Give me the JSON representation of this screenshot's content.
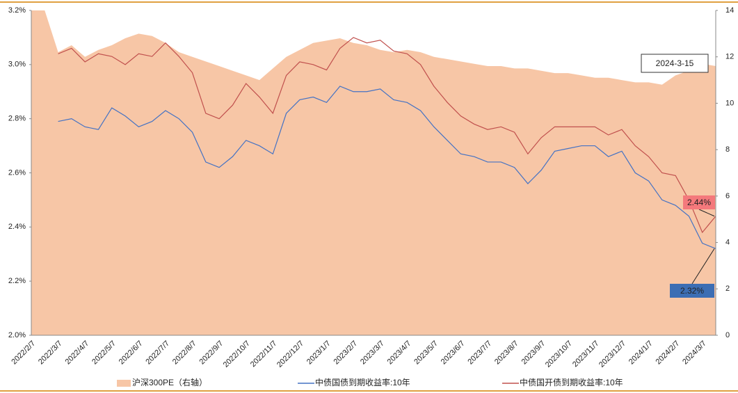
{
  "chart_data": {
    "type": "line",
    "annotation": "2024-3-15",
    "categories": [
      "2022/2/7",
      null,
      "2022/3/7",
      null,
      "2022/4/7",
      null,
      "2022/5/7",
      null,
      "2022/6/7",
      null,
      "2022/7/7",
      null,
      "2022/8/7",
      null,
      "2022/9/7",
      null,
      "2022/10/7",
      null,
      "2022/11/7",
      null,
      "2022/12/7",
      null,
      "2023/1/7",
      null,
      "2023/2/7",
      null,
      "2023/3/7",
      null,
      "2023/4/7",
      null,
      "2023/5/7",
      null,
      "2023/6/7",
      null,
      "2023/7/7",
      null,
      "2023/8/7",
      null,
      "2023/9/7",
      null,
      "2023/10/7",
      null,
      "2023/11/7",
      null,
      "2023/12/7",
      null,
      "2024/1/7",
      null,
      "2024/2/7",
      null,
      "2024/3/7",
      null
    ],
    "series": [
      {
        "name": "沪深300PE（右轴）",
        "color": "#f7c6a6",
        "axis": "y2",
        "kind": "area",
        "values": [
          14,
          14,
          12.2,
          12.5,
          12.0,
          12.3,
          12.5,
          12.8,
          13.0,
          12.9,
          12.6,
          12.2,
          12.0,
          11.8,
          11.6,
          11.4,
          11.2,
          11.0,
          11.5,
          12.0,
          12.3,
          12.6,
          12.7,
          12.8,
          12.6,
          12.5,
          12.3,
          12.2,
          12.3,
          12.2,
          12.0,
          11.9,
          11.8,
          11.7,
          11.6,
          11.6,
          11.5,
          11.5,
          11.4,
          11.3,
          11.3,
          11.2,
          11.1,
          11.1,
          11.0,
          10.9,
          10.9,
          10.8,
          11.2,
          11.4,
          11.7,
          11.6
        ]
      },
      {
        "name": "中债国债到期收益率:10年",
        "color": "#4472c4",
        "values": [
          null,
          null,
          2.79,
          2.8,
          2.77,
          2.76,
          2.84,
          2.81,
          2.77,
          2.79,
          2.83,
          2.8,
          2.75,
          2.64,
          2.62,
          2.66,
          2.72,
          2.7,
          2.67,
          2.82,
          2.87,
          2.88,
          2.86,
          2.92,
          2.9,
          2.9,
          2.91,
          2.87,
          2.86,
          2.83,
          2.77,
          2.72,
          2.67,
          2.66,
          2.64,
          2.64,
          2.62,
          2.56,
          2.61,
          2.68,
          2.69,
          2.7,
          2.7,
          2.66,
          2.68,
          2.6,
          2.57,
          2.5,
          2.48,
          2.44,
          2.34,
          2.32
        ],
        "value_labels": [
          null,
          null,
          null,
          null,
          null,
          null,
          null,
          null,
          null,
          null,
          null,
          null,
          null,
          null,
          null,
          null,
          null,
          null,
          null,
          null,
          null,
          null,
          null,
          null,
          null,
          null,
          null,
          null,
          null,
          null,
          null,
          null,
          null,
          null,
          null,
          null,
          null,
          null,
          null,
          null,
          null,
          null,
          null,
          null,
          null,
          null,
          null,
          null,
          null,
          null,
          null,
          "2.32%"
        ],
        "label_color": "#3c6eb4"
      },
      {
        "name": "中债国开债到期收益率:10年",
        "color": "#c0504d",
        "values": [
          null,
          null,
          3.04,
          3.06,
          3.01,
          3.04,
          3.03,
          3.0,
          3.04,
          3.03,
          3.08,
          3.03,
          2.97,
          2.82,
          2.8,
          2.85,
          2.93,
          2.88,
          2.82,
          2.96,
          3.01,
          3.0,
          2.98,
          3.06,
          3.1,
          3.08,
          3.09,
          3.05,
          3.04,
          3.0,
          2.92,
          2.86,
          2.81,
          2.78,
          2.76,
          2.77,
          2.75,
          2.67,
          2.73,
          2.77,
          2.77,
          2.77,
          2.77,
          2.74,
          2.76,
          2.7,
          2.66,
          2.6,
          2.59,
          2.5,
          2.38,
          2.44
        ],
        "value_labels": [
          null,
          null,
          null,
          null,
          null,
          null,
          null,
          null,
          null,
          null,
          null,
          null,
          null,
          null,
          null,
          null,
          null,
          null,
          null,
          null,
          null,
          null,
          null,
          null,
          null,
          null,
          null,
          null,
          null,
          null,
          null,
          null,
          null,
          null,
          null,
          null,
          null,
          null,
          null,
          null,
          null,
          null,
          null,
          null,
          null,
          null,
          null,
          null,
          null,
          null,
          null,
          "2.44%"
        ],
        "label_color": "#f4797c"
      }
    ],
    "ylim": [
      2.0,
      3.2
    ],
    "yticks": [
      {
        "value": 2.0,
        "label": "2.0%"
      },
      {
        "value": 2.2,
        "label": "2.2%"
      },
      {
        "value": 2.4,
        "label": "2.4%"
      },
      {
        "value": 2.6,
        "label": "2.6%"
      },
      {
        "value": 2.8,
        "label": "2.8%"
      },
      {
        "value": 3.0,
        "label": "3.0%"
      },
      {
        "value": 3.2,
        "label": "3.2%"
      }
    ],
    "y2lim": [
      0,
      14
    ],
    "y2ticks": [
      0,
      2,
      4,
      6,
      8,
      10,
      12,
      14
    ],
    "legend": "bottom"
  }
}
